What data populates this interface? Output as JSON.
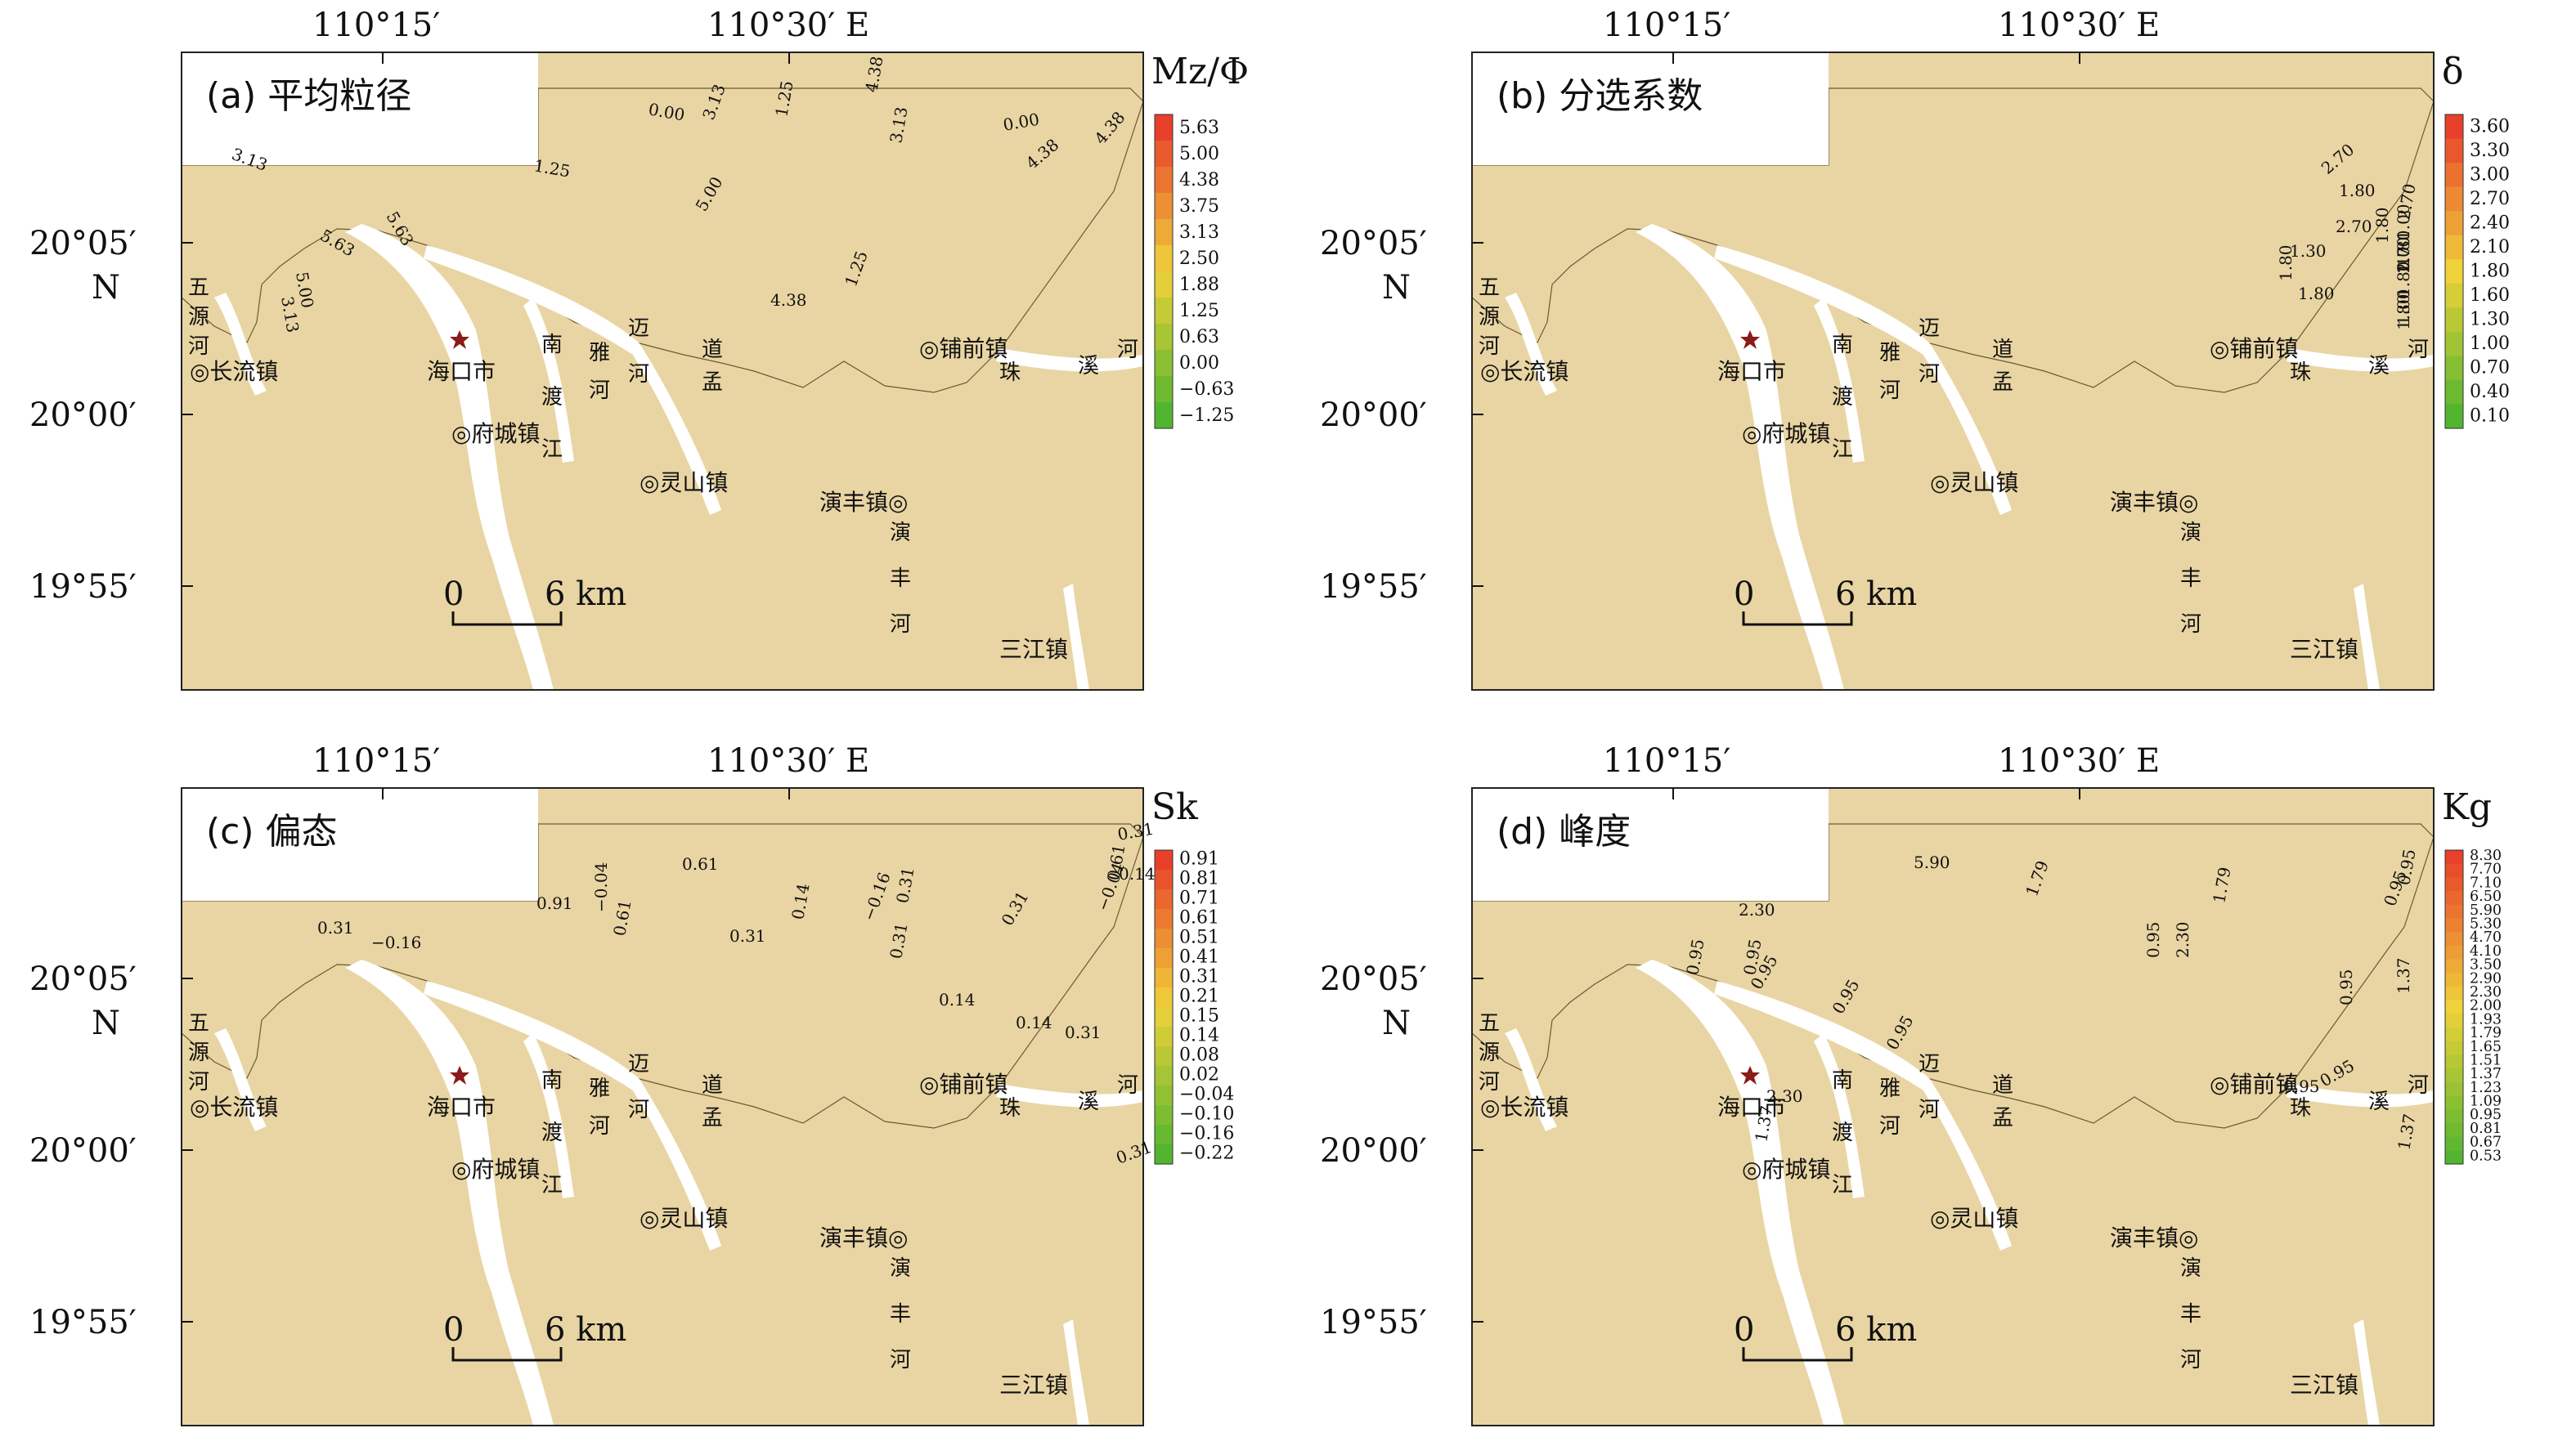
{
  "figure": {
    "longitude_ticks": [
      "110°15′",
      "110°30′ E"
    ],
    "latitude_ticks": [
      "20°05′",
      "20°00′",
      "19°55′"
    ],
    "latitude_hemisphere": "N",
    "scale_bar": {
      "start": "0",
      "end": "6 km"
    },
    "places": {
      "haikou": "海口市",
      "changliu": "◎长流镇",
      "fucheng": "◎府城镇",
      "lingshan": "◎灵山镇",
      "puqian": "◎铺前镇",
      "yanfeng": "演丰镇◎",
      "sanjiang": "三江镇"
    },
    "rivers": {
      "wuyuan": [
        "五",
        "源",
        "河"
      ],
      "nandu": [
        "南",
        "渡",
        "江"
      ],
      "yamei": [
        "雅",
        "河"
      ],
      "mai": [
        "迈",
        "河"
      ],
      "daomeng": [
        "道",
        "孟"
      ],
      "yanfeng": [
        "演",
        "丰",
        "河"
      ],
      "zhuxi": [
        "珠",
        "溪",
        "河"
      ]
    }
  },
  "panels": [
    {
      "id": "a",
      "title": "(a) 平均粒径",
      "legend_title": "Mz/Φ",
      "legend_values": [
        "5.63",
        "5.00",
        "4.38",
        "3.75",
        "3.13",
        "2.50",
        "1.88",
        "1.25",
        "0.63",
        "0.00",
        "−0.63",
        "−1.25"
      ],
      "contour_labels": [
        "3.13",
        "5.63",
        "5.00",
        "3.13",
        "5.63",
        "1.25",
        "0.00",
        "1.25",
        "3.13",
        "5.00",
        "4.38",
        "1.25",
        "4.38",
        "3.13",
        "0.00",
        "4.38",
        "4.38"
      ]
    },
    {
      "id": "b",
      "title": "(b) 分选系数",
      "legend_title": "δ",
      "legend_values": [
        "3.60",
        "3.30",
        "3.00",
        "2.70",
        "2.40",
        "2.10",
        "1.80",
        "1.60",
        "1.30",
        "1.00",
        "0.70",
        "0.40",
        "0.10"
      ],
      "contour_labels": [
        "2.70",
        "1.80",
        "1.30",
        "1.80",
        "2.70",
        "1.80",
        "2.70",
        "1.80",
        "2.70",
        "1.80",
        "1.00",
        "1.00",
        "1.80",
        "1.00",
        "1.80"
      ]
    },
    {
      "id": "c",
      "title": "(c) 偏态",
      "legend_title": "Sk",
      "legend_values": [
        "0.91",
        "0.81",
        "0.71",
        "0.61",
        "0.51",
        "0.41",
        "0.31",
        "0.21",
        "0.15",
        "0.14",
        "0.08",
        "0.02",
        "−0.04",
        "−0.10",
        "−0.16",
        "−0.22"
      ],
      "contour_labels": [
        "0.91",
        "0.31",
        "−0.16",
        "−0.04",
        "0.61",
        "0.31",
        "0.14",
        "−0.16",
        "0.31",
        "0.61",
        "0.31",
        "0.14",
        "0.31",
        "0.14",
        "0.31",
        "0.61",
        "0.31",
        "0.14",
        "−0.04",
        "0.31"
      ]
    },
    {
      "id": "d",
      "title": "(d) 峰度",
      "legend_title": "Kg",
      "legend_values": [
        "8.30",
        "7.70",
        "7.10",
        "6.50",
        "5.90",
        "5.30",
        "4.70",
        "4.10",
        "3.50",
        "2.90",
        "2.30",
        "2.00",
        "1.93",
        "1.79",
        "1.65",
        "1.51",
        "1.37",
        "1.23",
        "1.09",
        "0.95",
        "0.81",
        "0.67",
        "0.53"
      ],
      "contour_labels": [
        "5.90",
        "2.30",
        "0.95",
        "2.30",
        "1.37",
        "0.95",
        "0.95",
        "0.95",
        "0.95",
        "1.79",
        "0.95",
        "2.30",
        "1.79",
        "0.95",
        "0.95",
        "0.95",
        "0.95",
        "0.95",
        "1.37",
        "1.37"
      ]
    }
  ],
  "colors": {
    "land": "#e9d5a3",
    "river": "#ffffff",
    "frame": "#222222",
    "ramp_hot": "#e8402a",
    "ramp_mid": "#f0d23a",
    "ramp_cool": "#52b52f"
  }
}
